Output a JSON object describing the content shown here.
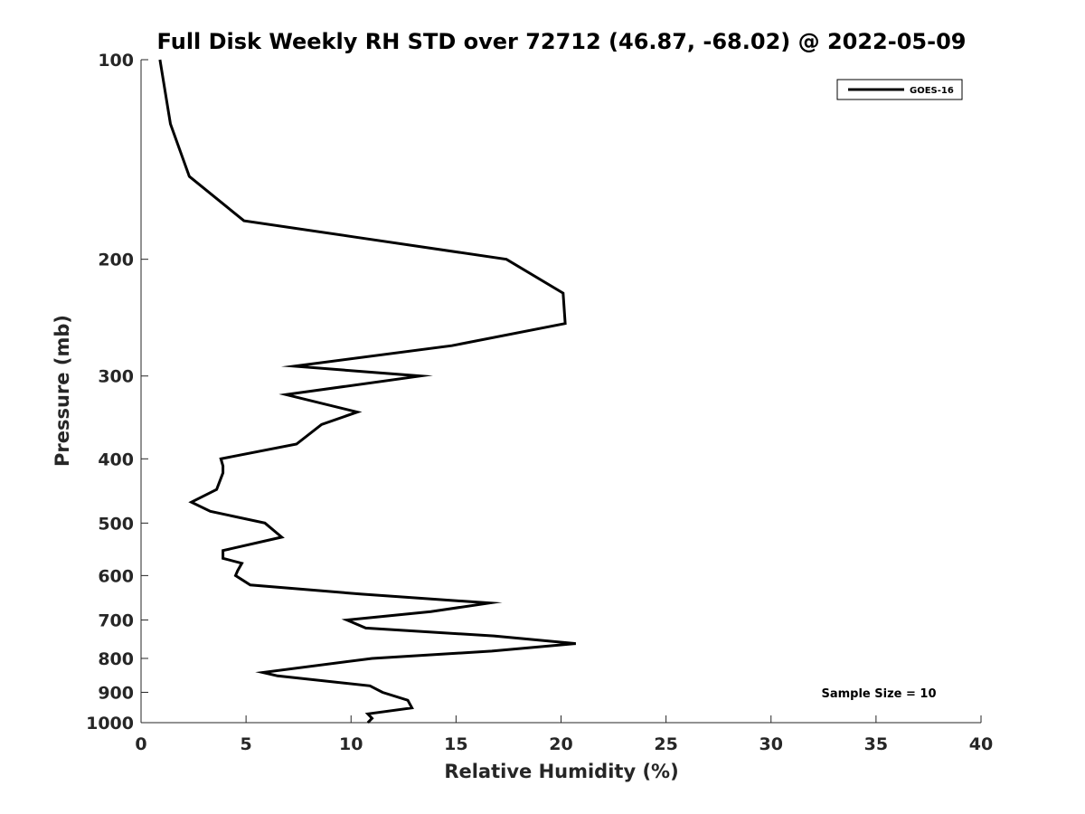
{
  "chart_data": {
    "type": "line",
    "title": "Full Disk Weekly RH STD over 72712 (46.87, -68.02) @ 2022-05-09",
    "xlabel": "Relative Humidity (%)",
    "ylabel": "Pressure (mb)",
    "xlim": [
      0,
      40
    ],
    "ylim": [
      100,
      1000
    ],
    "y_scale": "log",
    "y_reversed": true,
    "x_ticks": [
      0,
      5,
      10,
      15,
      20,
      25,
      30,
      35,
      40
    ],
    "y_ticks": [
      100,
      200,
      300,
      400,
      500,
      600,
      700,
      800,
      900,
      1000
    ],
    "grid": false,
    "legend_position": "top-right",
    "annotation": "Sample Size = 10",
    "series": [
      {
        "name": "GOES-16",
        "color": "#000000",
        "points": [
          [
            0.9,
            100
          ],
          [
            1.4,
            125
          ],
          [
            2.3,
            150
          ],
          [
            4.9,
            175
          ],
          [
            10.1,
            185
          ],
          [
            17.4,
            200
          ],
          [
            20.1,
            225
          ],
          [
            20.2,
            250
          ],
          [
            14.8,
            270
          ],
          [
            7.3,
            290
          ],
          [
            13.3,
            300
          ],
          [
            6.9,
            320
          ],
          [
            10.3,
            340
          ],
          [
            8.6,
            355
          ],
          [
            7.4,
            380
          ],
          [
            3.8,
            400
          ],
          [
            3.9,
            410
          ],
          [
            3.9,
            420
          ],
          [
            3.6,
            445
          ],
          [
            2.4,
            465
          ],
          [
            3.3,
            480
          ],
          [
            5.9,
            500
          ],
          [
            6.7,
            525
          ],
          [
            3.9,
            550
          ],
          [
            3.9,
            565
          ],
          [
            4.8,
            575
          ],
          [
            4.6,
            590
          ],
          [
            4.5,
            600
          ],
          [
            5.2,
            620
          ],
          [
            10.5,
            640
          ],
          [
            16.6,
            660
          ],
          [
            13.8,
            680
          ],
          [
            9.8,
            700
          ],
          [
            10.7,
            720
          ],
          [
            16.8,
            740
          ],
          [
            20.7,
            760
          ],
          [
            16.7,
            780
          ],
          [
            11.0,
            800
          ],
          [
            5.8,
            840
          ],
          [
            6.5,
            850
          ],
          [
            10.9,
            880
          ],
          [
            11.5,
            900
          ],
          [
            12.7,
            925
          ],
          [
            12.9,
            950
          ],
          [
            10.8,
            970
          ],
          [
            11.0,
            985
          ],
          [
            10.8,
            1000
          ]
        ]
      }
    ]
  }
}
